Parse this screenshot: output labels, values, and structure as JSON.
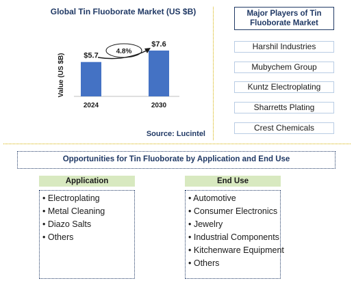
{
  "chart_data": {
    "type": "bar",
    "title": "Global Tin Fluoborate Market (US $B)",
    "ylabel": "Value (US $B)",
    "categories": [
      "2024",
      "2030"
    ],
    "values": [
      5.7,
      7.6
    ],
    "value_labels": [
      "$5.7",
      "$7.6"
    ],
    "cagr_label": "4.8%",
    "ylim": [
      0,
      8.5
    ],
    "bar_color": "#4472c4",
    "grid": false
  },
  "source": "Source: Lucintel",
  "players": {
    "title": "Major Players of Tin Fluoborate Market",
    "items": [
      "Harshil Industries",
      "Mubychem Group",
      "Kuntz Electroplating",
      "Sharretts Plating",
      "Crest Chemicals"
    ]
  },
  "opportunities": {
    "title": "Opportunities for Tin Fluoborate by Application and End Use",
    "application": {
      "header": "Application",
      "items": [
        "Electroplating",
        "Metal Cleaning",
        "Diazo Salts",
        "Others"
      ]
    },
    "end_use": {
      "header": "End Use",
      "items": [
        "Automotive",
        "Consumer Electronics",
        "Jewelry",
        "Industrial Components",
        "Kitchenware Equipment",
        "Others"
      ]
    }
  },
  "colors": {
    "title": "#1f3864",
    "accent_divider": "#d4b000",
    "header_bg": "#d8e9c0"
  }
}
